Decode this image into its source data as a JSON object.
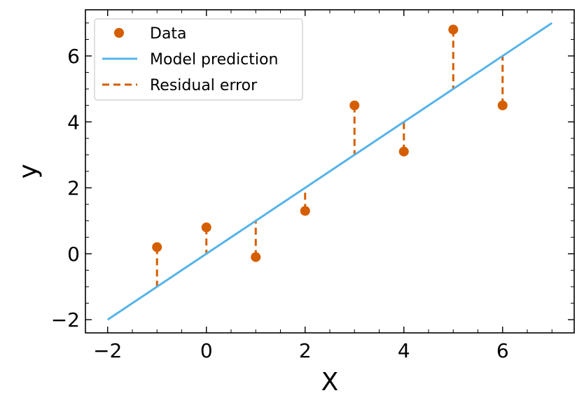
{
  "chart_data": {
    "type": "scatter",
    "xlabel": "X",
    "ylabel": "y",
    "xlim": [
      -2.45,
      7.45
    ],
    "ylim": [
      -2.4,
      7.4
    ],
    "xticks": [
      -2,
      0,
      2,
      4,
      6
    ],
    "yticks": [
      -2,
      0,
      2,
      4,
      6
    ],
    "xtick_labels": [
      "−2",
      "0",
      "2",
      "4",
      "6"
    ],
    "ytick_labels": [
      "−2",
      "0",
      "2",
      "4",
      "6"
    ],
    "grid": false,
    "legend_position": "upper-left",
    "series": [
      {
        "name": "Data",
        "kind": "points",
        "color": "#d55e00",
        "x": [
          -1,
          0,
          1,
          2,
          3,
          4,
          5,
          6
        ],
        "y": [
          0.2,
          0.8,
          -0.1,
          1.3,
          4.5,
          3.1,
          6.8,
          4.5
        ]
      },
      {
        "name": "Model prediction",
        "kind": "line",
        "color": "#56b4e9",
        "x": [
          -2,
          7
        ],
        "y": [
          -2,
          7
        ]
      },
      {
        "name": "Residual error",
        "kind": "dashed-segments",
        "color": "#d55e00",
        "x": [
          -1,
          0,
          1,
          2,
          3,
          4,
          5,
          6
        ],
        "y_from": [
          0.2,
          0.8,
          -0.1,
          1.3,
          4.5,
          3.1,
          6.8,
          4.5
        ],
        "y_to": [
          -1,
          0,
          1,
          2,
          3,
          4,
          5,
          6
        ]
      }
    ]
  }
}
